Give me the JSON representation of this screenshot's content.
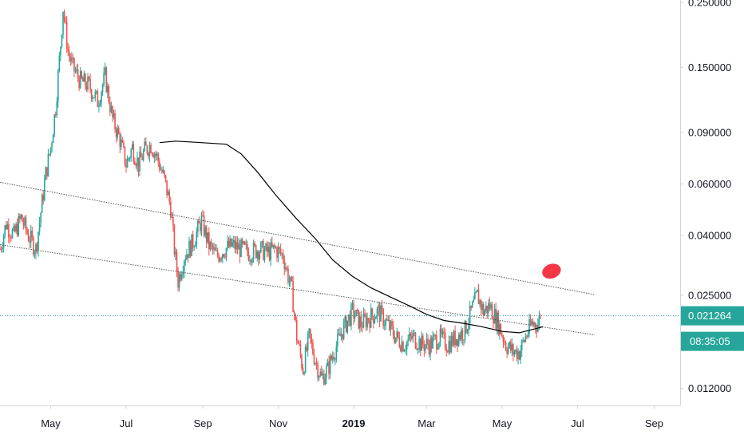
{
  "chart_data": {
    "type": "candlestick",
    "title": "",
    "xlabel": "",
    "ylabel": "",
    "y_scale": "log",
    "ylim": [
      0.0105,
      0.255
    ],
    "x_range": [
      "2018-03-21",
      "2019-09-22"
    ],
    "grid": false,
    "price_ticks": [
      "0.250000",
      "0.150000",
      "0.090000",
      "0.060000",
      "0.040000",
      "0.025000",
      "0.012000"
    ],
    "time_ticks": [
      {
        "label": "May",
        "date": "2018-05-01"
      },
      {
        "label": "Jul",
        "date": "2018-07-01"
      },
      {
        "label": "Sep",
        "date": "2018-09-01"
      },
      {
        "label": "Nov",
        "date": "2018-11-01"
      },
      {
        "label": "2019",
        "date": "2019-01-01",
        "bold": true
      },
      {
        "label": "Mar",
        "date": "2019-03-01"
      },
      {
        "label": "May",
        "date": "2019-05-01"
      },
      {
        "label": "Jul",
        "date": "2019-07-01"
      },
      {
        "label": "Sep",
        "date": "2019-09-01"
      }
    ],
    "last_price": {
      "value": 0.021264,
      "label": "0.021264",
      "color": "#26a69a"
    },
    "countdown": "08:35:05",
    "colors": {
      "up": "#26a69a",
      "down": "#ef5350",
      "ma": "#000000",
      "trendline": "#555555",
      "marker": "#f23645"
    },
    "price_path": [
      [
        "2018-03-21",
        0.036
      ],
      [
        "2018-03-26",
        0.044
      ],
      [
        "2018-04-01",
        0.04
      ],
      [
        "2018-04-07",
        0.046
      ],
      [
        "2018-04-13",
        0.04
      ],
      [
        "2018-04-19",
        0.036
      ],
      [
        "2018-04-23",
        0.048
      ],
      [
        "2018-04-27",
        0.065
      ],
      [
        "2018-05-01",
        0.08
      ],
      [
        "2018-05-05",
        0.11
      ],
      [
        "2018-05-09",
        0.18
      ],
      [
        "2018-05-11",
        0.24
      ],
      [
        "2018-05-15",
        0.17
      ],
      [
        "2018-05-19",
        0.15
      ],
      [
        "2018-05-25",
        0.135
      ],
      [
        "2018-06-01",
        0.13
      ],
      [
        "2018-06-08",
        0.115
      ],
      [
        "2018-06-14",
        0.14
      ],
      [
        "2018-06-20",
        0.1
      ],
      [
        "2018-06-26",
        0.085
      ],
      [
        "2018-07-01",
        0.07
      ],
      [
        "2018-07-06",
        0.08
      ],
      [
        "2018-07-11",
        0.07
      ],
      [
        "2018-07-16",
        0.078
      ],
      [
        "2018-07-21",
        0.082
      ],
      [
        "2018-07-26",
        0.074
      ],
      [
        "2018-08-01",
        0.062
      ],
      [
        "2018-08-06",
        0.05
      ],
      [
        "2018-08-09",
        0.036
      ],
      [
        "2018-08-12",
        0.028
      ],
      [
        "2018-08-17",
        0.034
      ],
      [
        "2018-08-24",
        0.038
      ],
      [
        "2018-08-31",
        0.045
      ],
      [
        "2018-09-06",
        0.037
      ],
      [
        "2018-09-12",
        0.034
      ],
      [
        "2018-09-19",
        0.036
      ],
      [
        "2018-09-25",
        0.037
      ],
      [
        "2018-10-02",
        0.036
      ],
      [
        "2018-10-09",
        0.035
      ],
      [
        "2018-10-16",
        0.036
      ],
      [
        "2018-10-23",
        0.035
      ],
      [
        "2018-10-30",
        0.036
      ],
      [
        "2018-11-05",
        0.034
      ],
      [
        "2018-11-12",
        0.026
      ],
      [
        "2018-11-16",
        0.018
      ],
      [
        "2018-11-21",
        0.014
      ],
      [
        "2018-11-26",
        0.018
      ],
      [
        "2018-12-01",
        0.015
      ],
      [
        "2018-12-06",
        0.013
      ],
      [
        "2018-12-11",
        0.014
      ],
      [
        "2018-12-16",
        0.016
      ],
      [
        "2018-12-23",
        0.019
      ],
      [
        "2018-12-31",
        0.022
      ],
      [
        "2019-01-07",
        0.02
      ],
      [
        "2019-01-14",
        0.021
      ],
      [
        "2019-01-21",
        0.022
      ],
      [
        "2019-01-28",
        0.02
      ],
      [
        "2019-02-04",
        0.018
      ],
      [
        "2019-02-11",
        0.017
      ],
      [
        "2019-02-18",
        0.018
      ],
      [
        "2019-02-25",
        0.017
      ],
      [
        "2019-03-04",
        0.017
      ],
      [
        "2019-03-11",
        0.018
      ],
      [
        "2019-03-18",
        0.017
      ],
      [
        "2019-03-25",
        0.018
      ],
      [
        "2019-04-01",
        0.019
      ],
      [
        "2019-04-06",
        0.022
      ],
      [
        "2019-04-11",
        0.025
      ],
      [
        "2019-04-16",
        0.022
      ],
      [
        "2019-04-21",
        0.023
      ],
      [
        "2019-04-28",
        0.02
      ],
      [
        "2019-05-04",
        0.017
      ],
      [
        "2019-05-10",
        0.016
      ],
      [
        "2019-05-15",
        0.016
      ],
      [
        "2019-05-20",
        0.018
      ],
      [
        "2019-05-25",
        0.02
      ],
      [
        "2019-05-30",
        0.02
      ],
      [
        "2019-06-01",
        0.021264
      ]
    ],
    "moving_average": [
      [
        "2018-07-28",
        0.083
      ],
      [
        "2018-08-10",
        0.084
      ],
      [
        "2018-08-31",
        0.083
      ],
      [
        "2018-09-20",
        0.082
      ],
      [
        "2018-10-02",
        0.076
      ],
      [
        "2018-10-15",
        0.066
      ],
      [
        "2018-10-30",
        0.055
      ],
      [
        "2018-11-15",
        0.046
      ],
      [
        "2018-12-01",
        0.039
      ],
      [
        "2018-12-15",
        0.033
      ],
      [
        "2018-12-31",
        0.029
      ],
      [
        "2019-01-15",
        0.0265
      ],
      [
        "2019-02-01",
        0.0245
      ],
      [
        "2019-02-15",
        0.023
      ],
      [
        "2019-03-01",
        0.0215
      ],
      [
        "2019-03-15",
        0.0205
      ],
      [
        "2019-04-01",
        0.02
      ],
      [
        "2019-04-15",
        0.0195
      ],
      [
        "2019-05-01",
        0.0188
      ],
      [
        "2019-05-15",
        0.0186
      ],
      [
        "2019-06-03",
        0.0195
      ]
    ],
    "trendlines": [
      {
        "from": [
          "2018-03-21",
          0.0608
        ],
        "to": [
          "2019-07-15",
          0.0251
        ]
      },
      {
        "from": [
          "2018-03-21",
          0.0372
        ],
        "to": [
          "2019-07-15",
          0.0183
        ]
      }
    ],
    "marker": {
      "date": "2019-06-10",
      "value": 0.0302
    }
  }
}
